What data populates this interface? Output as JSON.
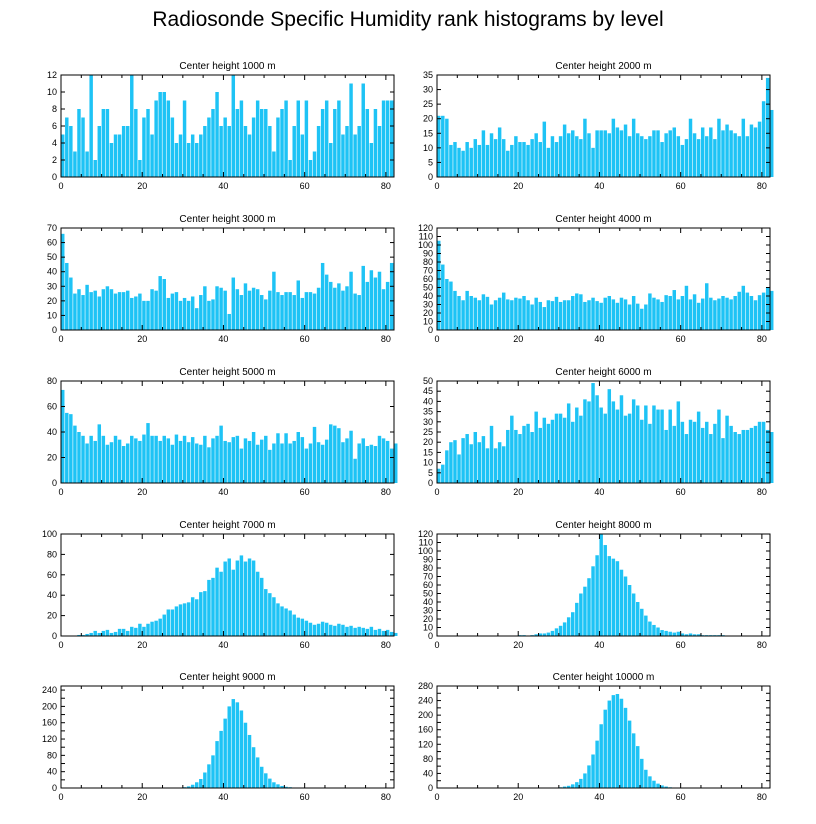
{
  "figure": {
    "title": "Radiosonde Specific Humidity rank histograms by level"
  },
  "style": {
    "bar_color": "#1ec3f5",
    "bar_edge": "#0aa8dc",
    "axis_color": "#000000"
  },
  "chart_data": [
    {
      "type": "bar",
      "title": "Center height 1000 m",
      "xlim": [
        0,
        82
      ],
      "ylim": [
        0,
        12
      ],
      "xticks": [
        0,
        20,
        40,
        60,
        80
      ],
      "yticks": [
        0,
        2,
        4,
        6,
        8,
        10,
        12
      ],
      "values": [
        5,
        7,
        6,
        3,
        8,
        7,
        3,
        12,
        2,
        6,
        8,
        8,
        4,
        5,
        5,
        6,
        6,
        12,
        8,
        2,
        7,
        8,
        5,
        9,
        10,
        10,
        9,
        7,
        4,
        5,
        9,
        4,
        5,
        4,
        5,
        6,
        7,
        8,
        10,
        6,
        7,
        6,
        12,
        8,
        9,
        6,
        5,
        7,
        9,
        8,
        8,
        6,
        3,
        7,
        8,
        9,
        2,
        6,
        9,
        5,
        9,
        2,
        3,
        6,
        8,
        9,
        4,
        8,
        9,
        5,
        6,
        11,
        5,
        6,
        11,
        8,
        4,
        8,
        6,
        9,
        9,
        9
      ]
    },
    {
      "type": "bar",
      "title": "Center height 2000 m",
      "xlim": [
        0,
        82
      ],
      "ylim": [
        0,
        35
      ],
      "xticks": [
        0,
        20,
        40,
        60,
        80
      ],
      "yticks": [
        0,
        5,
        10,
        15,
        20,
        25,
        30,
        35
      ],
      "values": [
        21,
        21,
        20,
        11,
        12,
        10,
        9,
        12,
        10,
        13,
        11,
        16,
        11,
        15,
        13,
        17,
        13,
        9,
        11,
        14,
        12,
        12,
        11,
        13,
        15,
        12,
        19,
        10,
        14,
        12,
        14,
        18,
        15,
        16,
        14,
        13,
        20,
        15,
        10,
        16,
        16,
        16,
        15,
        20,
        17,
        16,
        18,
        14,
        20,
        15,
        14,
        13,
        14,
        16,
        16,
        12,
        15,
        16,
        17,
        14,
        11,
        13,
        20,
        15,
        13,
        17,
        14,
        17,
        13,
        20,
        16,
        18,
        16,
        15,
        14,
        20,
        14,
        18,
        17,
        19,
        26,
        34,
        23
      ]
    },
    {
      "type": "bar",
      "title": "Center height 3000 m",
      "xlim": [
        0,
        82
      ],
      "ylim": [
        0,
        70
      ],
      "xticks": [
        0,
        20,
        40,
        60,
        80
      ],
      "yticks": [
        0,
        10,
        20,
        30,
        40,
        50,
        60,
        70
      ],
      "values": [
        66,
        46,
        36,
        25,
        28,
        24,
        31,
        26,
        27,
        23,
        28,
        30,
        28,
        25,
        26,
        26,
        27,
        22,
        23,
        25,
        20,
        20,
        28,
        27,
        37,
        35,
        22,
        25,
        26,
        20,
        22,
        20,
        23,
        15,
        24,
        30,
        20,
        21,
        30,
        29,
        27,
        11,
        36,
        28,
        24,
        32,
        27,
        29,
        28,
        24,
        21,
        27,
        40,
        26,
        24,
        26,
        26,
        24,
        34,
        22,
        26,
        26,
        25,
        29,
        46,
        38,
        33,
        29,
        32,
        27,
        30,
        40,
        25,
        24,
        44,
        33,
        41,
        36,
        40,
        28,
        33,
        46
      ]
    },
    {
      "type": "bar",
      "title": "Center height 4000 m",
      "xlim": [
        0,
        82
      ],
      "ylim": [
        0,
        120
      ],
      "xticks": [
        0,
        20,
        40,
        60,
        80
      ],
      "yticks": [
        0,
        10,
        20,
        30,
        40,
        50,
        60,
        70,
        80,
        90,
        100,
        110,
        120
      ],
      "values": [
        105,
        77,
        60,
        57,
        46,
        40,
        35,
        46,
        40,
        38,
        35,
        42,
        39,
        30,
        35,
        38,
        44,
        36,
        35,
        38,
        37,
        40,
        35,
        30,
        38,
        33,
        27,
        35,
        34,
        39,
        33,
        35,
        35,
        40,
        43,
        42,
        33,
        35,
        38,
        34,
        32,
        38,
        40,
        36,
        32,
        38,
        36,
        30,
        40,
        31,
        25,
        30,
        43,
        38,
        36,
        33,
        41,
        40,
        47,
        36,
        40,
        52,
        36,
        42,
        32,
        37,
        55,
        38,
        35,
        37,
        40,
        38,
        36,
        40,
        45,
        52,
        44,
        40,
        35,
        41,
        44,
        50,
        46
      ]
    },
    {
      "type": "bar",
      "title": "Center height 5000 m",
      "xlim": [
        0,
        82
      ],
      "ylim": [
        0,
        80
      ],
      "xticks": [
        0,
        20,
        40,
        60,
        80
      ],
      "yticks": [
        0,
        20,
        40,
        60,
        80
      ],
      "values": [
        73,
        55,
        54,
        45,
        40,
        37,
        31,
        37,
        33,
        46,
        37,
        30,
        32,
        37,
        34,
        29,
        31,
        37,
        35,
        33,
        38,
        47,
        37,
        37,
        33,
        37,
        35,
        30,
        38,
        33,
        37,
        32,
        36,
        31,
        30,
        37,
        28,
        35,
        37,
        45,
        33,
        32,
        36,
        37,
        27,
        35,
        33,
        40,
        30,
        34,
        37,
        26,
        31,
        39,
        31,
        39,
        31,
        33,
        40,
        36,
        27,
        31,
        44,
        32,
        30,
        34,
        46,
        45,
        43,
        32,
        35,
        41,
        19,
        31,
        35,
        29,
        30,
        29,
        37,
        35,
        33,
        27,
        31
      ]
    },
    {
      "type": "bar",
      "title": "Center height 6000 m",
      "xlim": [
        0,
        82
      ],
      "ylim": [
        0,
        50
      ],
      "xticks": [
        0,
        20,
        40,
        60,
        80
      ],
      "yticks": [
        0,
        5,
        10,
        15,
        20,
        25,
        30,
        35,
        40,
        45,
        50
      ],
      "values": [
        7,
        9,
        16,
        20,
        21,
        14,
        22,
        24,
        19,
        25,
        20,
        23,
        17,
        28,
        17,
        20,
        18,
        26,
        33,
        26,
        24,
        28,
        29,
        25,
        35,
        27,
        32,
        29,
        31,
        34,
        34,
        32,
        39,
        30,
        37,
        33,
        41,
        40,
        49,
        43,
        37,
        34,
        46,
        40,
        36,
        43,
        33,
        34,
        41,
        38,
        31,
        38,
        29,
        38,
        36,
        36,
        26,
        36,
        28,
        40,
        30,
        24,
        31,
        30,
        35,
        27,
        30,
        24,
        29,
        36,
        22,
        33,
        28,
        25,
        24,
        26,
        26,
        27,
        28,
        30,
        30,
        26,
        25
      ]
    },
    {
      "type": "bar",
      "title": "Center height 7000 m",
      "xlim": [
        0,
        82
      ],
      "ylim": [
        0,
        100
      ],
      "xticks": [
        0,
        20,
        40,
        60,
        80
      ],
      "yticks": [
        0,
        20,
        40,
        60,
        80,
        100
      ],
      "values": [
        0,
        0,
        0,
        0,
        1,
        1,
        2,
        3,
        5,
        3,
        5,
        6,
        3,
        4,
        7,
        7,
        5,
        9,
        8,
        12,
        9,
        12,
        14,
        15,
        17,
        21,
        26,
        26,
        29,
        31,
        32,
        33,
        38,
        36,
        43,
        44,
        55,
        57,
        67,
        63,
        73,
        76,
        65,
        74,
        79,
        73,
        76,
        74,
        63,
        57,
        46,
        42,
        38,
        32,
        29,
        27,
        25,
        21,
        18,
        17,
        15,
        13,
        11,
        12,
        14,
        13,
        11,
        10,
        12,
        11,
        9,
        10,
        8,
        9,
        8,
        7,
        9,
        6,
        7,
        5,
        6,
        4,
        3
      ]
    },
    {
      "type": "bar",
      "title": "Center height 8000 m",
      "xlim": [
        0,
        82
      ],
      "ylim": [
        0,
        120
      ],
      "xticks": [
        0,
        20,
        40,
        60,
        80
      ],
      "yticks": [
        0,
        10,
        20,
        30,
        40,
        50,
        60,
        70,
        80,
        90,
        100,
        110,
        120
      ],
      "values": [
        0,
        0,
        0,
        0,
        0,
        0,
        0,
        0,
        0,
        0,
        0,
        0,
        0,
        0,
        0,
        0,
        0,
        0,
        0,
        0,
        1,
        1,
        0,
        1,
        2,
        3,
        3,
        4,
        6,
        9,
        12,
        16,
        22,
        28,
        39,
        50,
        58,
        68,
        82,
        95,
        120,
        107,
        94,
        91,
        88,
        78,
        70,
        60,
        50,
        40,
        32,
        24,
        17,
        13,
        10,
        7,
        6,
        5,
        4,
        5,
        3,
        2,
        3,
        2,
        2,
        1,
        1,
        1,
        1,
        1,
        1,
        0,
        0,
        0,
        0,
        0,
        0,
        0,
        0,
        0,
        0,
        0,
        0
      ]
    },
    {
      "type": "bar",
      "title": "Center height 9000 m",
      "xlim": [
        0,
        82
      ],
      "ylim": [
        0,
        250
      ],
      "xticks": [
        0,
        20,
        40,
        60,
        80
      ],
      "yticks": [
        0,
        20,
        40,
        60,
        80,
        100,
        120,
        140,
        160,
        180,
        200,
        220,
        240
      ],
      "ytick_labels": [
        "0",
        "",
        "40",
        "",
        "80",
        "",
        "120",
        "",
        "160",
        "",
        "200",
        "",
        "240"
      ],
      "values": [
        0,
        0,
        0,
        0,
        0,
        0,
        0,
        0,
        0,
        0,
        0,
        0,
        0,
        0,
        0,
        0,
        0,
        0,
        0,
        0,
        0,
        0,
        0,
        0,
        0,
        0,
        0,
        0,
        0,
        1,
        2,
        4,
        8,
        14,
        22,
        38,
        58,
        80,
        115,
        140,
        170,
        200,
        218,
        210,
        190,
        160,
        130,
        100,
        75,
        52,
        36,
        23,
        14,
        9,
        5,
        3,
        2,
        1,
        1,
        0,
        0,
        0,
        0,
        0,
        0,
        0,
        0,
        0,
        0,
        0,
        0,
        0,
        0,
        0,
        0,
        0,
        0,
        0,
        0,
        0,
        0,
        0,
        0
      ]
    },
    {
      "type": "bar",
      "title": "Center height 10000 m",
      "xlim": [
        0,
        82
      ],
      "ylim": [
        0,
        280
      ],
      "xticks": [
        0,
        20,
        40,
        60,
        80
      ],
      "yticks": [
        0,
        20,
        40,
        60,
        80,
        100,
        120,
        140,
        160,
        180,
        200,
        220,
        240,
        260,
        280
      ],
      "ytick_labels": [
        "0",
        "",
        "40",
        "",
        "80",
        "",
        "120",
        "",
        "160",
        "",
        "200",
        "",
        "240",
        "",
        "280"
      ],
      "values": [
        0,
        0,
        0,
        0,
        0,
        0,
        0,
        0,
        0,
        0,
        0,
        0,
        0,
        0,
        0,
        0,
        0,
        0,
        0,
        0,
        0,
        0,
        0,
        0,
        0,
        0,
        0,
        0,
        0,
        1,
        2,
        4,
        6,
        10,
        16,
        25,
        40,
        62,
        92,
        130,
        175,
        215,
        240,
        255,
        258,
        245,
        220,
        185,
        150,
        115,
        80,
        50,
        32,
        20,
        12,
        7,
        4,
        2,
        1,
        1,
        0,
        0,
        0,
        0,
        0,
        0,
        0,
        0,
        0,
        0,
        0,
        0,
        0,
        0,
        0,
        0,
        0,
        0,
        0,
        0,
        0,
        0,
        0
      ]
    }
  ]
}
